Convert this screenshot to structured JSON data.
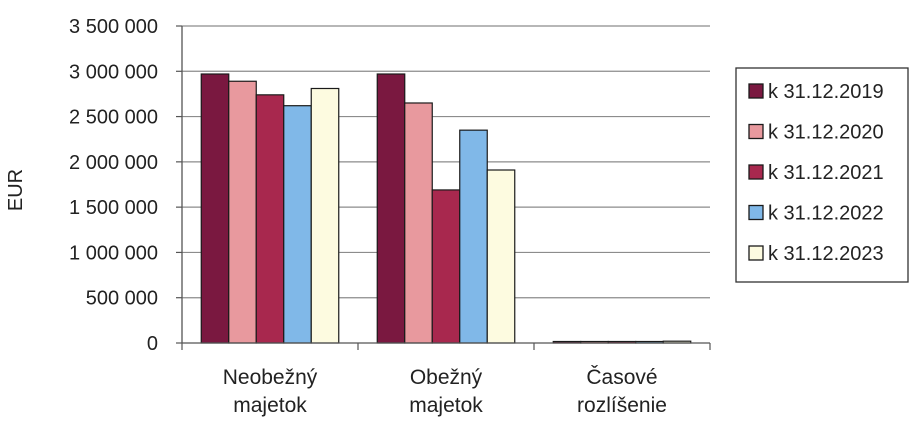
{
  "chart_data": {
    "type": "bar",
    "ylabel": "EUR",
    "xlabel": "",
    "ylim": [
      0,
      3500000
    ],
    "ytick_values": [
      0,
      500000,
      1000000,
      1500000,
      2000000,
      2500000,
      3000000,
      3500000
    ],
    "ytick_labels": [
      "0",
      "500 000",
      "1 000 000",
      "1 500 000",
      "2 000 000",
      "2 500 000",
      "3 000 000",
      "3 500 000"
    ],
    "grid": true,
    "legend_position": "right",
    "categories": [
      [
        "Neobežný",
        "majetok"
      ],
      [
        "Obežný",
        "majetok"
      ],
      [
        "Časové",
        "rozlíšenie"
      ]
    ],
    "series": [
      {
        "name": "k 31.12.2019",
        "color": "#7a1840",
        "values": [
          2970000,
          2970000,
          8000
        ]
      },
      {
        "name": "k 31.12.2020",
        "color": "#e8999e",
        "values": [
          2890000,
          2650000,
          5000
        ]
      },
      {
        "name": "k 31.12.2021",
        "color": "#a8284e",
        "values": [
          2740000,
          1690000,
          5000
        ]
      },
      {
        "name": "k 31.12.2022",
        "color": "#80b8e8",
        "values": [
          2620000,
          2350000,
          8000
        ]
      },
      {
        "name": "k 31.12.2023",
        "color": "#fdfbe0",
        "values": [
          2810000,
          1910000,
          20000
        ]
      }
    ]
  }
}
